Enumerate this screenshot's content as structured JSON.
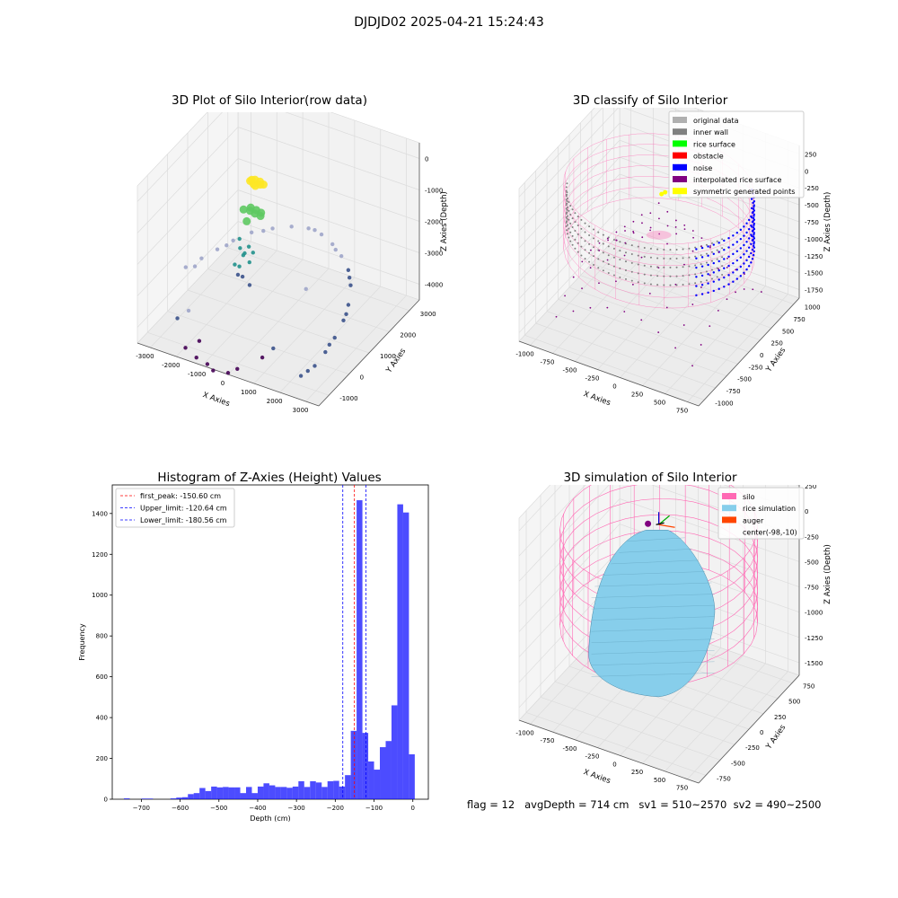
{
  "suptitle": "DJDJD02 2025-04-21 15:24:43",
  "footer": "flag = 12   avgDepth = 714 cm   sv1 = 510~2570  sv2 = 490~2500",
  "colors": {
    "raw_low": "#440154",
    "raw_mid": "#3b528b",
    "raw_teal": "#21918c",
    "raw_green": "#5ec962",
    "raw_yellow": "#fde725",
    "raw_light": "#9fa5c9",
    "original": "#b0b0b0",
    "wall": "#808080",
    "surface": "#00ff00",
    "obstacle": "#ff0000",
    "noise": "#0000ff",
    "interp": "#800080",
    "sym": "#ffff00",
    "silo": "#ff69b4",
    "rice": "#87ceeb",
    "auger": "#ff4500",
    "hist": "#0000ff"
  },
  "chart_data": [
    {
      "type": "scatter",
      "subtype": "3d",
      "title": "3D Plot of Silo Interior(row data)",
      "xlabel": "X Axies",
      "ylabel": "Y Axies",
      "zlabel": "Z Axies (Depth)",
      "xticks": [
        "-3000",
        "-2000",
        "-1000",
        "0",
        "1000",
        "2000",
        "3000"
      ],
      "yticks": [
        "-1000",
        "0",
        "1000",
        "2000",
        "3000"
      ],
      "zticks": [
        "0",
        "-1000",
        "-2000",
        "-3000",
        "-4000"
      ],
      "xlim": [
        -3500,
        3500
      ],
      "ylim": [
        -1500,
        3500
      ],
      "zlim": [
        -5000,
        0
      ],
      "grid": true,
      "points": [
        {
          "x": -1400,
          "y": 1400,
          "z": -1200,
          "c": "raw_yellow"
        },
        {
          "x": -1250,
          "y": 1450,
          "z": -1150,
          "c": "raw_yellow"
        },
        {
          "x": -1100,
          "y": 1500,
          "z": -1200,
          "c": "raw_yellow"
        },
        {
          "x": -1000,
          "y": 1550,
          "z": -1300,
          "c": "raw_yellow"
        },
        {
          "x": -1350,
          "y": 1500,
          "z": -1350,
          "c": "raw_yellow"
        },
        {
          "x": -1200,
          "y": 1400,
          "z": -1300,
          "c": "raw_yellow"
        },
        {
          "x": -1050,
          "y": 1450,
          "z": -1250,
          "c": "raw_yellow"
        },
        {
          "x": -1300,
          "y": 1350,
          "z": -1100,
          "c": "raw_yellow"
        },
        {
          "x": -1500,
          "y": 1200,
          "z": -2000,
          "c": "raw_green"
        },
        {
          "x": -1300,
          "y": 1300,
          "z": -1950,
          "c": "raw_green"
        },
        {
          "x": -1100,
          "y": 1250,
          "z": -2050,
          "c": "raw_green"
        },
        {
          "x": -900,
          "y": 1300,
          "z": -2000,
          "c": "raw_green"
        },
        {
          "x": -1400,
          "y": 1400,
          "z": -2150,
          "c": "raw_green"
        },
        {
          "x": -1200,
          "y": 1450,
          "z": -2100,
          "c": "raw_green"
        },
        {
          "x": -1000,
          "y": 1400,
          "z": -2200,
          "c": "raw_green"
        },
        {
          "x": -1300,
          "y": 1100,
          "z": -2250,
          "c": "raw_green"
        },
        {
          "x": -1500,
          "y": 1000,
          "z": -2800,
          "c": "raw_teal"
        },
        {
          "x": -1400,
          "y": 900,
          "z": -3000,
          "c": "raw_teal"
        },
        {
          "x": -1300,
          "y": 1000,
          "z": -3200,
          "c": "raw_teal"
        },
        {
          "x": -1200,
          "y": 800,
          "z": -3100,
          "c": "raw_teal"
        },
        {
          "x": -1100,
          "y": 950,
          "z": -2900,
          "c": "raw_teal"
        },
        {
          "x": -1000,
          "y": 850,
          "z": -3300,
          "c": "raw_teal"
        },
        {
          "x": -900,
          "y": 900,
          "z": -3000,
          "c": "raw_teal"
        },
        {
          "x": -1450,
          "y": 700,
          "z": -3400,
          "c": "raw_teal"
        },
        {
          "x": -1250,
          "y": 600,
          "z": -3600,
          "c": "raw_mid"
        },
        {
          "x": -1150,
          "y": 700,
          "z": -3700,
          "c": "raw_mid"
        },
        {
          "x": -1350,
          "y": 800,
          "z": -3500,
          "c": "raw_teal"
        },
        {
          "x": -800,
          "y": 600,
          "z": -3800,
          "c": "raw_mid"
        },
        {
          "x": -2800,
          "y": 0,
          "z": -3400,
          "c": "raw_light"
        },
        {
          "x": -2500,
          "y": 400,
          "z": -3300,
          "c": "raw_light"
        },
        {
          "x": -2200,
          "y": 800,
          "z": -3200,
          "c": "raw_light"
        },
        {
          "x": -1900,
          "y": 1200,
          "z": -3100,
          "c": "raw_light"
        },
        {
          "x": -1500,
          "y": 1600,
          "z": -3000,
          "c": "raw_light"
        },
        {
          "x": -1000,
          "y": 2000,
          "z": -3000,
          "c": "raw_light"
        },
        {
          "x": -500,
          "y": 2300,
          "z": -3000,
          "c": "raw_light"
        },
        {
          "x": 0,
          "y": 2500,
          "z": -3050,
          "c": "raw_light"
        },
        {
          "x": 500,
          "y": 2500,
          "z": -3100,
          "c": "raw_light"
        },
        {
          "x": 1000,
          "y": 2400,
          "z": -3200,
          "c": "raw_light"
        },
        {
          "x": 1500,
          "y": 2200,
          "z": -3300,
          "c": "raw_light"
        },
        {
          "x": 2000,
          "y": 1900,
          "z": -3400,
          "c": "raw_mid"
        },
        {
          "x": 2400,
          "y": 1500,
          "z": -3500,
          "c": "raw_mid"
        },
        {
          "x": 2700,
          "y": 1000,
          "z": -3700,
          "c": "raw_mid"
        },
        {
          "x": 2900,
          "y": 500,
          "z": -3800,
          "c": "raw_mid"
        },
        {
          "x": 2950,
          "y": 0,
          "z": -4000,
          "c": "raw_mid"
        },
        {
          "x": 2900,
          "y": -400,
          "z": -4200,
          "c": "raw_mid"
        },
        {
          "x": 2800,
          "y": -800,
          "z": -4400,
          "c": "raw_mid"
        },
        {
          "x": 2500,
          "y": -1100,
          "z": -4600,
          "c": "raw_mid"
        },
        {
          "x": -2600,
          "y": 200,
          "z": -3450,
          "c": "raw_light"
        },
        {
          "x": -2000,
          "y": 1000,
          "z": -3150,
          "c": "raw_light"
        },
        {
          "x": -1200,
          "y": 1800,
          "z": -3000,
          "c": "raw_light"
        },
        {
          "x": 200,
          "y": 2550,
          "z": -3080,
          "c": "raw_light"
        },
        {
          "x": 1200,
          "y": 2300,
          "z": -3250,
          "c": "raw_light"
        },
        {
          "x": 2200,
          "y": 1700,
          "z": -3450,
          "c": "raw_mid"
        },
        {
          "x": 2850,
          "y": 700,
          "z": -3750,
          "c": "raw_mid"
        },
        {
          "x": 2900,
          "y": -200,
          "z": -4100,
          "c": "raw_mid"
        },
        {
          "x": 2650,
          "y": -950,
          "z": -4500,
          "c": "raw_mid"
        },
        {
          "x": -2300,
          "y": -500,
          "z": -4300,
          "c": "raw_light"
        },
        {
          "x": 600,
          "y": 1600,
          "z": -4200,
          "c": "raw_light"
        },
        {
          "x": 1200,
          "y": -800,
          "z": -4300,
          "c": "raw_mid"
        },
        {
          "x": -1500,
          "y": -1000,
          "z": -4700,
          "c": "raw_low"
        },
        {
          "x": -1800,
          "y": -1300,
          "z": -4800,
          "c": "raw_low"
        },
        {
          "x": -1300,
          "y": -1400,
          "z": -4900,
          "c": "raw_low"
        },
        {
          "x": -800,
          "y": -1500,
          "z": -4900,
          "c": "raw_low"
        },
        {
          "x": -500,
          "y": -1600,
          "z": -4950,
          "c": "raw_low"
        },
        {
          "x": 0,
          "y": -1500,
          "z": -4950,
          "c": "raw_low"
        },
        {
          "x": 200,
          "y": -1300,
          "z": -4900,
          "c": "raw_low"
        },
        {
          "x": 700,
          "y": -700,
          "z": -4800,
          "c": "raw_low"
        },
        {
          "x": -2500,
          "y": -800,
          "z": -4400,
          "c": "raw_mid"
        }
      ]
    },
    {
      "type": "scatter",
      "subtype": "3d",
      "title": "3D classify of Silo Interior",
      "xlabel": "X Axies",
      "ylabel": "Y Axies",
      "zlabel": "Z Axies (Depth)",
      "xticks": [
        "-1000",
        "-750",
        "-500",
        "-250",
        "0",
        "250",
        "500",
        "750"
      ],
      "yticks": [
        "-1000",
        "-750",
        "-500",
        "-250",
        "0",
        "250",
        "500",
        "750",
        "1000"
      ],
      "zticks": [
        "250",
        "0",
        "-250",
        "-500",
        "-750",
        "-1000",
        "-1250",
        "-1500",
        "-1750"
      ],
      "xlim": [
        -1050,
        850
      ],
      "ylim": [
        -1050,
        1050
      ],
      "zlim": [
        -1850,
        300
      ],
      "grid": true,
      "legend": "upper right",
      "legend_entries": [
        {
          "label": "original data",
          "c": "original"
        },
        {
          "label": "inner wall",
          "c": "wall"
        },
        {
          "label": "rice surface",
          "c": "surface"
        },
        {
          "label": "obstacle",
          "c": "obstacle"
        },
        {
          "label": "noise",
          "c": "noise"
        },
        {
          "label": "interpolated rice surface",
          "c": "interp"
        },
        {
          "label": "symmetric generated points",
          "c": "sym"
        }
      ],
      "silo": {
        "cx": -98,
        "cy": -10,
        "radius": 900,
        "z_top": 0,
        "z_bottom": -900
      },
      "wall_points_depth": [
        -100,
        -600
      ],
      "noise_arc_side": "right",
      "surface_center": [
        -98,
        -10
      ]
    },
    {
      "type": "bar",
      "subtype": "histogram",
      "title": "Histogram of Z-Axies (Height) Values",
      "xlabel": "Depth (cm)",
      "ylabel": "Frequency",
      "xlim": [
        -775,
        40
      ],
      "ylim": [
        0,
        1540
      ],
      "xticks": [
        -700,
        -600,
        -500,
        -400,
        -300,
        -200,
        -100,
        0
      ],
      "xtick_labels": [
        "−700",
        "−600",
        "−500",
        "−400",
        "−300",
        "−200",
        "−100",
        "0"
      ],
      "yticks": [
        0,
        200,
        400,
        600,
        800,
        1000,
        1200,
        1400
      ],
      "yticks_labels": [
        "0",
        "200",
        "400",
        "600",
        "800",
        "1000",
        "1200",
        "1400"
      ],
      "bin_width": 15,
      "bins": [
        [
          -745,
          4
        ],
        [
          -730,
          0
        ],
        [
          -715,
          0
        ],
        [
          -700,
          3
        ],
        [
          -685,
          3
        ],
        [
          -670,
          0
        ],
        [
          -655,
          0
        ],
        [
          -640,
          0
        ],
        [
          -625,
          4
        ],
        [
          -610,
          8
        ],
        [
          -595,
          10
        ],
        [
          -580,
          25
        ],
        [
          -565,
          30
        ],
        [
          -550,
          55
        ],
        [
          -535,
          40
        ],
        [
          -520,
          62
        ],
        [
          -505,
          58
        ],
        [
          -490,
          60
        ],
        [
          -475,
          58
        ],
        [
          -460,
          58
        ],
        [
          -445,
          30
        ],
        [
          -430,
          60
        ],
        [
          -415,
          30
        ],
        [
          -400,
          62
        ],
        [
          -385,
          78
        ],
        [
          -370,
          68
        ],
        [
          -355,
          60
        ],
        [
          -340,
          60
        ],
        [
          -325,
          56
        ],
        [
          -310,
          62
        ],
        [
          -295,
          88
        ],
        [
          -280,
          60
        ],
        [
          -265,
          88
        ],
        [
          -250,
          82
        ],
        [
          -235,
          60
        ],
        [
          -220,
          88
        ],
        [
          -205,
          90
        ],
        [
          -190,
          62
        ],
        [
          -175,
          118
        ],
        [
          -160,
          335
        ],
        [
          -145,
          1465
        ],
        [
          -130,
          325
        ],
        [
          -115,
          185
        ],
        [
          -100,
          145
        ],
        [
          -85,
          255
        ],
        [
          -70,
          285
        ],
        [
          -55,
          460
        ],
        [
          -40,
          1445
        ],
        [
          -25,
          1405
        ],
        [
          -10,
          220
        ]
      ],
      "vlines": [
        {
          "label": "first_peak: -150.60 cm",
          "x": -150.6,
          "color": "#ff0000"
        },
        {
          "label": "Upper_limit: -120.64 cm",
          "x": -120.64,
          "color": "#0000ff"
        },
        {
          "label": "Lower_limit: -180.56 cm",
          "x": -180.56,
          "color": "#0000ff"
        }
      ],
      "legend": "upper left"
    },
    {
      "type": "area",
      "subtype": "3d-surface",
      "title": "3D simulation of Silo Interior",
      "xlabel": "X Axies",
      "ylabel": "Y Axies",
      "zlabel": "Z Axies (Depth)",
      "xticks": [
        "-1000",
        "-750",
        "-500",
        "-250",
        "0",
        "250",
        "500",
        "750"
      ],
      "yticks": [
        "-750",
        "-500",
        "-250",
        "0",
        "250",
        "500",
        "750"
      ],
      "zticks": [
        "250",
        "0",
        "-250",
        "-500",
        "-750",
        "-1000",
        "-1250",
        "-1500"
      ],
      "xlim": [
        -1050,
        850
      ],
      "ylim": [
        -900,
        900
      ],
      "zlim": [
        -1600,
        300
      ],
      "grid": true,
      "legend": "upper right",
      "legend_entries": [
        {
          "label": "silo",
          "c": "silo"
        },
        {
          "label": "rice simulation",
          "c": "rice"
        },
        {
          "label": "auger",
          "c": "auger"
        },
        {
          "label": "center(-98,-10)",
          "c": ""
        }
      ],
      "silo": {
        "cx": -98,
        "cy": -10,
        "radius": 900,
        "z_top": 0,
        "z_bottom": -900
      },
      "rice_peak_depth": 0,
      "rice_bottom_depth": -1500
    }
  ]
}
